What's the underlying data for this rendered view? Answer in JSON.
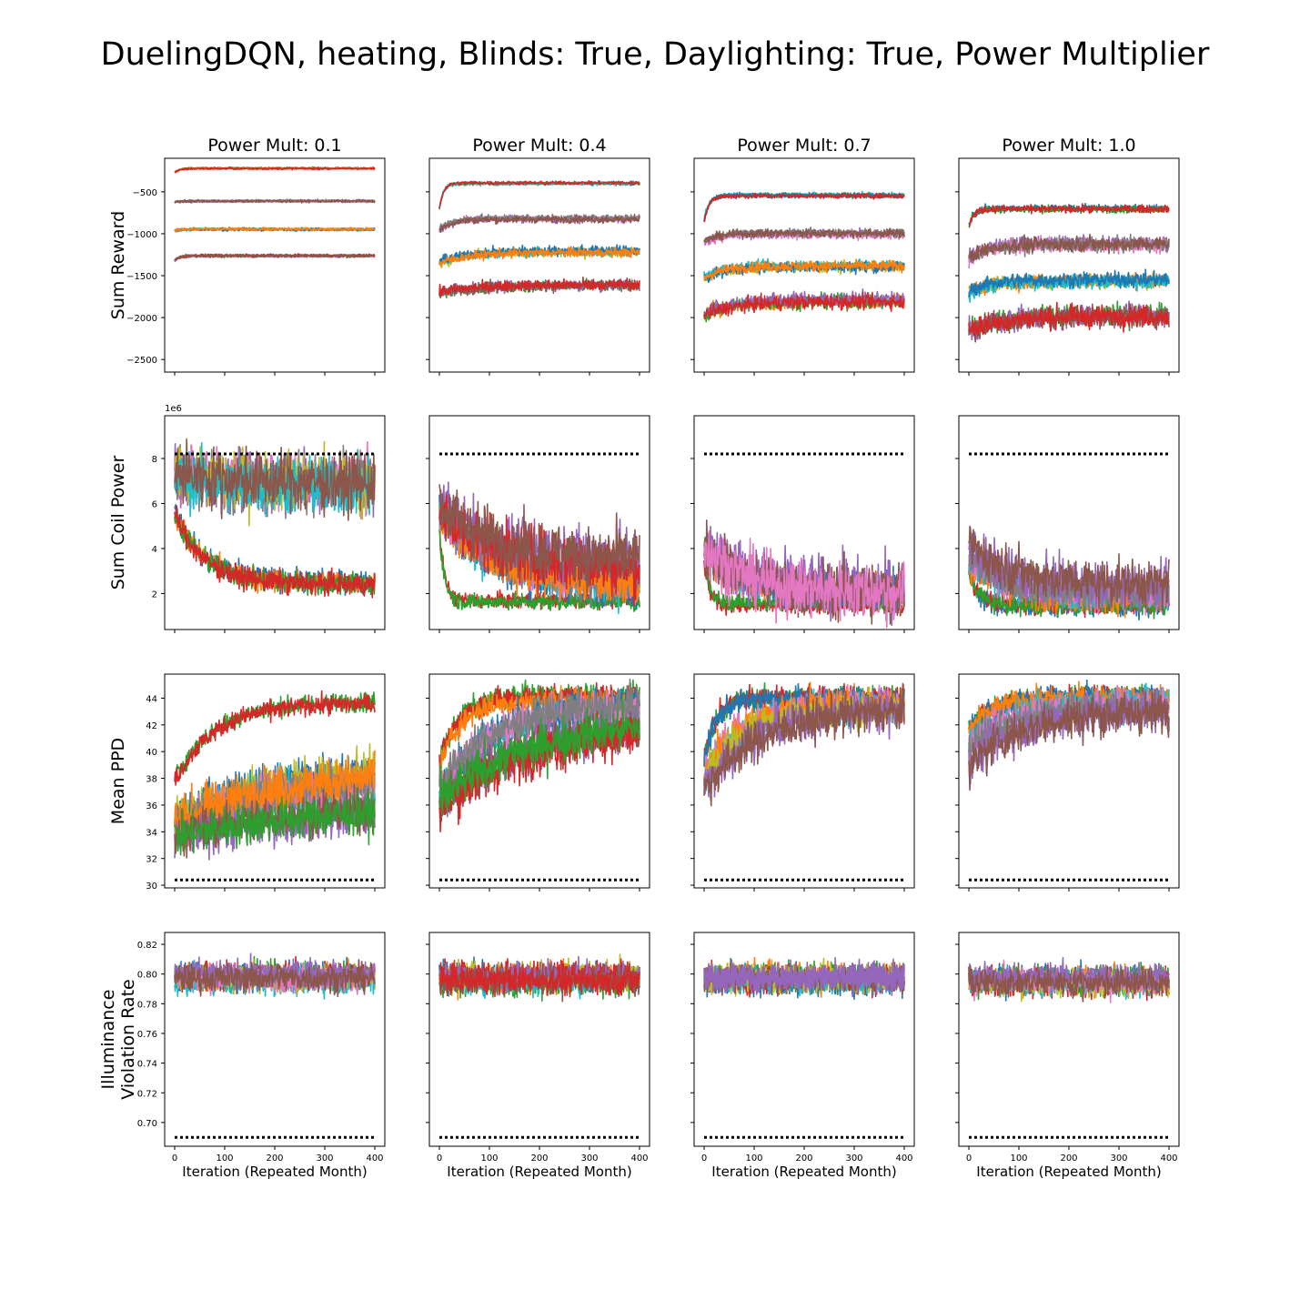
{
  "figure": {
    "title": "DuelingDQN, heating, Blinds: True, Daylighting: True, Power Multiplier"
  },
  "chart_data": {
    "type": "line",
    "columns": [
      {
        "title": "Power Mult: 0.1",
        "power_mult": 0.1
      },
      {
        "title": "Power Mult: 0.4",
        "power_mult": 0.4
      },
      {
        "title": "Power Mult: 0.7",
        "power_mult": 0.7
      },
      {
        "title": "Power Mult: 1.0",
        "power_mult": 1.0
      }
    ],
    "x_axis": {
      "label": "Iteration (Repeated Month)",
      "xlim": [
        -20,
        420
      ],
      "ticks": [
        0,
        100,
        200,
        300,
        400
      ],
      "tick_labels": [
        "0",
        "100",
        "200",
        "300",
        "400"
      ]
    },
    "series_colors": [
      "#1f77b4",
      "#ff7f0e",
      "#2ca02c",
      "#d62728",
      "#9467bd",
      "#8c564b",
      "#e377c2",
      "#7f7f7f",
      "#bcbd22",
      "#17becf"
    ],
    "reference_line": {
      "style": "dotted",
      "color": "#000000"
    },
    "rows": [
      {
        "ylabel": [
          "Sum Reward"
        ],
        "ylim": [
          -2650,
          -100
        ],
        "ticks": [
          -2500,
          -2000,
          -1500,
          -1000,
          -500
        ],
        "tick_labels": [
          "−2500",
          "−2000",
          "−1500",
          "−1000",
          "−500"
        ],
        "offset_text": "",
        "reference": null,
        "panels": [
          {
            "groups": [
              {
                "level": -220,
                "start": -270,
                "noise": 8,
                "tau": 10,
                "colors": [
                  "#1f77b4",
                  "#2ca02c",
                  "#ff7f0e",
                  "#d62728"
                ]
              },
              {
                "level": -610,
                "start": -625,
                "noise": 10,
                "tau": 10,
                "colors": [
                  "#9467bd",
                  "#e377c2",
                  "#7f7f7f",
                  "#8c564b"
                ]
              },
              {
                "level": -945,
                "start": -960,
                "noise": 12,
                "tau": 10,
                "colors": [
                  "#17becf",
                  "#bcbd22",
                  "#1f77b4",
                  "#ff7f0e"
                ]
              },
              {
                "level": -1265,
                "start": -1320,
                "noise": 12,
                "tau": 10,
                "colors": [
                  "#2ca02c",
                  "#9467bd",
                  "#d62728",
                  "#8c564b"
                ]
              }
            ]
          },
          {
            "groups": [
              {
                "level": -395,
                "start": -700,
                "noise": 14,
                "tau": 8,
                "colors": [
                  "#1f77b4",
                  "#2ca02c",
                  "#17becf",
                  "#d62728"
                ]
              },
              {
                "level": -820,
                "start": -950,
                "noise": 28,
                "tau": 25,
                "colors": [
                  "#9467bd",
                  "#e377c2",
                  "#7f7f7f",
                  "#8c564b"
                ]
              },
              {
                "level": -1210,
                "start": -1340,
                "noise": 38,
                "tau": 60,
                "colors": [
                  "#bcbd22",
                  "#17becf",
                  "#1f77b4",
                  "#ff7f0e"
                ]
              },
              {
                "level": -1610,
                "start": -1700,
                "noise": 45,
                "tau": 80,
                "colors": [
                  "#2ca02c",
                  "#9467bd",
                  "#8c564b",
                  "#d62728"
                ]
              }
            ]
          },
          {
            "groups": [
              {
                "level": -545,
                "start": -850,
                "noise": 20,
                "tau": 10,
                "colors": [
                  "#17becf",
                  "#2ca02c",
                  "#1f77b4",
                  "#d62728"
                ]
              },
              {
                "level": -1000,
                "start": -1100,
                "noise": 35,
                "tau": 30,
                "colors": [
                  "#9467bd",
                  "#e377c2",
                  "#7f7f7f",
                  "#8c564b"
                ]
              },
              {
                "level": -1380,
                "start": -1520,
                "noise": 45,
                "tau": 40,
                "colors": [
                  "#bcbd22",
                  "#17becf",
                  "#1f77b4",
                  "#ff7f0e"
                ]
              },
              {
                "level": -1790,
                "start": -1950,
                "noise": 60,
                "tau": 60,
                "colors": [
                  "#ff7f0e",
                  "#2ca02c",
                  "#9467bd",
                  "#d62728"
                ]
              }
            ]
          },
          {
            "groups": [
              {
                "level": -700,
                "start": -900,
                "noise": 30,
                "tau": 10,
                "colors": [
                  "#1f77b4",
                  "#2ca02c",
                  "#d62728"
                ]
              },
              {
                "level": -1130,
                "start": -1300,
                "noise": 60,
                "tau": 40,
                "colors": [
                  "#9467bd",
                  "#e377c2",
                  "#7f7f7f",
                  "#8c564b"
                ]
              },
              {
                "level": -1560,
                "start": -1700,
                "noise": 60,
                "tau": 40,
                "colors": [
                  "#bcbd22",
                  "#ff7f0e",
                  "#17becf",
                  "#1f77b4"
                ]
              },
              {
                "level": -1980,
                "start": -2150,
                "noise": 90,
                "tau": 80,
                "colors": [
                  "#2ca02c",
                  "#9467bd",
                  "#8c564b",
                  "#d62728"
                ]
              }
            ]
          }
        ]
      },
      {
        "ylabel": [
          "Sum Coil Power"
        ],
        "ylim": [
          0.4,
          9.9
        ],
        "ticks": [
          2,
          4,
          6,
          8
        ],
        "tick_labels": [
          "2",
          "4",
          "6",
          "8"
        ],
        "offset_text": "1e6",
        "reference": 8.2,
        "panels": [
          {
            "groups": [
              {
                "level": 2.4,
                "start": 5.5,
                "noise": 0.35,
                "tau": 60,
                "colors": [
                  "#1f77b4",
                  "#ff7f0e",
                  "#2ca02c",
                  "#d62728"
                ]
              },
              {
                "level": 6.8,
                "start": 7.2,
                "noise": 0.9,
                "tau": 150,
                "colors": [
                  "#9467bd",
                  "#e377c2",
                  "#7f7f7f",
                  "#bcbd22",
                  "#17becf",
                  "#8c564b"
                ]
              }
            ]
          },
          {
            "groups": [
              {
                "level": 1.6,
                "start": 4.8,
                "noise": 0.25,
                "tau": 10,
                "colors": [
                  "#d62728",
                  "#2ca02c"
                ]
              },
              {
                "level": 2.3,
                "start": 5.6,
                "noise": 0.6,
                "tau": 100,
                "colors": [
                  "#1f77b4",
                  "#17becf",
                  "#e377c2",
                  "#7f7f7f",
                  "#ff7f0e"
                ]
              },
              {
                "level": 3.4,
                "start": 5.8,
                "noise": 0.9,
                "tau": 120,
                "colors": [
                  "#9467bd",
                  "#d62728",
                  "#8c564b"
                ]
              }
            ]
          },
          {
            "groups": [
              {
                "level": 1.5,
                "start": 3.5,
                "noise": 0.25,
                "tau": 10,
                "colors": [
                  "#d62728",
                  "#2ca02c"
                ]
              },
              {
                "level": 2.0,
                "start": 4.0,
                "noise": 0.5,
                "tau": 60,
                "colors": [
                  "#17becf",
                  "#7f7f7f",
                  "#ff7f0e",
                  "#1f77b4"
                ]
              },
              {
                "level": 2.4,
                "start": 4.5,
                "noise": 0.9,
                "tau": 80,
                "colors": [
                  "#9467bd",
                  "#8c564b",
                  "#e377c2"
                ]
              }
            ]
          },
          {
            "groups": [
              {
                "level": 1.5,
                "start": 3.0,
                "noise": 0.3,
                "tau": 20,
                "colors": [
                  "#1f77b4",
                  "#d62728",
                  "#2ca02c"
                ]
              },
              {
                "level": 1.9,
                "start": 3.5,
                "noise": 0.5,
                "tau": 60,
                "colors": [
                  "#ff7f0e",
                  "#17becf",
                  "#e377c2",
                  "#7f7f7f"
                ]
              },
              {
                "level": 2.2,
                "start": 4.0,
                "noise": 0.7,
                "tau": 80,
                "colors": [
                  "#9467bd",
                  "#8c564b"
                ]
              }
            ]
          }
        ]
      },
      {
        "ylabel": [
          "Mean PPD"
        ],
        "ylim": [
          29.8,
          45.8
        ],
        "ticks": [
          30,
          32,
          34,
          36,
          38,
          40,
          42,
          44
        ],
        "tick_labels": [
          "30",
          "32",
          "34",
          "36",
          "38",
          "40",
          "42",
          "44"
        ],
        "offset_text": "",
        "reference": 30.4,
        "panels": [
          {
            "groups": [
              {
                "level": 43.8,
                "start": 38.0,
                "noise": 0.5,
                "tau": 80,
                "colors": [
                  "#2ca02c",
                  "#d62728"
                ]
              },
              {
                "level": 38.3,
                "start": 34.5,
                "noise": 1.2,
                "tau": 180,
                "colors": [
                  "#1f77b4",
                  "#17becf",
                  "#bcbd22",
                  "#e377c2",
                  "#7f7f7f",
                  "#ff7f0e"
                ]
              },
              {
                "level": 35.8,
                "start": 33.5,
                "noise": 1.1,
                "tau": 250,
                "colors": [
                  "#9467bd",
                  "#8c564b",
                  "#2ca02c"
                ]
              }
            ]
          },
          {
            "groups": [
              {
                "level": 44.0,
                "start": 39.0,
                "noise": 0.6,
                "tau": 40,
                "colors": [
                  "#2ca02c",
                  "#d62728",
                  "#ff7f0e"
                ]
              },
              {
                "level": 43.2,
                "start": 37.0,
                "noise": 1.0,
                "tau": 110,
                "colors": [
                  "#17becf",
                  "#1f77b4",
                  "#e377c2",
                  "#7f7f7f"
                ]
              },
              {
                "level": 42.2,
                "start": 36.0,
                "noise": 1.2,
                "tau": 170,
                "colors": [
                  "#9467bd",
                  "#8c564b",
                  "#d62728",
                  "#2ca02c"
                ]
              }
            ]
          },
          {
            "groups": [
              {
                "level": 44.0,
                "start": 39.5,
                "noise": 0.6,
                "tau": 25,
                "colors": [
                  "#2ca02c",
                  "#d62728",
                  "#1f77b4"
                ]
              },
              {
                "level": 43.4,
                "start": 38.0,
                "noise": 0.9,
                "tau": 70,
                "colors": [
                  "#17becf",
                  "#e377c2",
                  "#ff7f0e",
                  "#bcbd22"
                ]
              },
              {
                "level": 43.0,
                "start": 37.0,
                "noise": 1.1,
                "tau": 110,
                "colors": [
                  "#9467bd",
                  "#8c564b"
                ]
              }
            ]
          },
          {
            "groups": [
              {
                "level": 44.0,
                "start": 41.5,
                "noise": 0.6,
                "tau": 50,
                "colors": [
                  "#2ca02c",
                  "#d62728",
                  "#1f77b4",
                  "#ff7f0e"
                ]
              },
              {
                "level": 43.5,
                "start": 40.5,
                "noise": 0.9,
                "tau": 90,
                "colors": [
                  "#17becf",
                  "#e377c2",
                  "#7f7f7f"
                ]
              },
              {
                "level": 43.2,
                "start": 39.0,
                "noise": 1.1,
                "tau": 100,
                "colors": [
                  "#9467bd",
                  "#8c564b"
                ]
              }
            ]
          }
        ]
      },
      {
        "ylabel": [
          "Illuminance",
          "Violation Rate"
        ],
        "ylim": [
          0.684,
          0.828
        ],
        "ticks": [
          0.7,
          0.72,
          0.74,
          0.76,
          0.78,
          0.8,
          0.82
        ],
        "tick_labels": [
          "0.70",
          "0.72",
          "0.74",
          "0.76",
          "0.78",
          "0.80",
          "0.82"
        ],
        "offset_text": "",
        "reference": 0.69,
        "panels": [
          {
            "groups": [
              {
                "level": 0.798,
                "start": 0.798,
                "noise": 0.0065,
                "tau": 10,
                "colors": [
                  "#1f77b4",
                  "#ff7f0e",
                  "#2ca02c",
                  "#d62728",
                  "#17becf",
                  "#bcbd22",
                  "#e377c2",
                  "#9467bd",
                  "#8c564b"
                ]
              }
            ]
          },
          {
            "groups": [
              {
                "level": 0.797,
                "start": 0.797,
                "noise": 0.0065,
                "tau": 10,
                "colors": [
                  "#1f77b4",
                  "#ff7f0e",
                  "#2ca02c",
                  "#17becf",
                  "#bcbd22",
                  "#d62728",
                  "#9467bd",
                  "#8c564b",
                  "#d62728"
                ]
              }
            ]
          },
          {
            "groups": [
              {
                "level": 0.796,
                "start": 0.796,
                "noise": 0.0065,
                "tau": 10,
                "colors": [
                  "#1f77b4",
                  "#ff7f0e",
                  "#2ca02c",
                  "#d62728",
                  "#17becf",
                  "#bcbd22",
                  "#8c564b",
                  "#9467bd",
                  "#9467bd"
                ]
              }
            ]
          },
          {
            "groups": [
              {
                "level": 0.796,
                "start": 0.796,
                "noise": 0.0065,
                "tau": 10,
                "colors": [
                  "#1f77b4",
                  "#ff7f0e",
                  "#2ca02c",
                  "#d62728",
                  "#17becf",
                  "#bcbd22",
                  "#e377c2",
                  "#9467bd",
                  "#8c564b"
                ]
              }
            ]
          }
        ]
      }
    ]
  }
}
